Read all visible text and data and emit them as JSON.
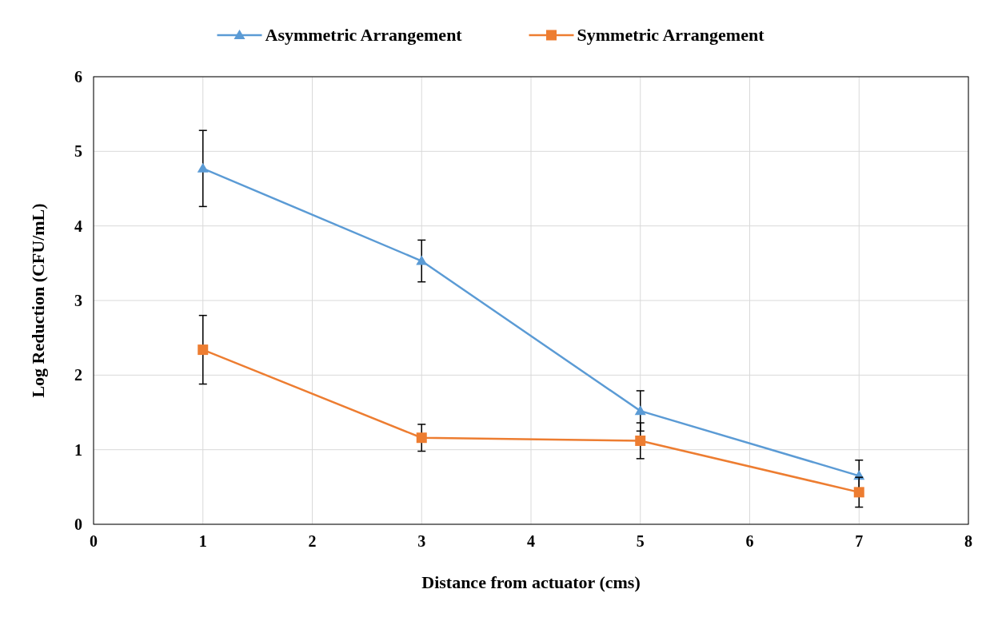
{
  "chart_data": {
    "type": "line",
    "xlabel": "Distance from actuator (cms)",
    "ylabel": "Log Reduction (CFU/mL)",
    "x": [
      1,
      3,
      5,
      7
    ],
    "series": [
      {
        "name": "Asymmetric Arrangement",
        "color": "#5b9bd5",
        "marker": "triangle",
        "values": [
          4.77,
          3.53,
          1.52,
          0.65
        ],
        "errors": [
          0.51,
          0.28,
          0.27,
          0.21
        ]
      },
      {
        "name": "Symmetric Arrangement",
        "color": "#ed7d31",
        "marker": "square",
        "values": [
          2.34,
          1.16,
          1.12,
          0.43
        ],
        "errors": [
          0.46,
          0.18,
          0.24,
          0.2
        ]
      }
    ],
    "xlim": [
      0,
      8
    ],
    "xticks": [
      0,
      1,
      2,
      3,
      4,
      5,
      6,
      7,
      8
    ],
    "ylim": [
      0,
      6
    ],
    "yticks": [
      0,
      1,
      2,
      3,
      4,
      5,
      6
    ],
    "grid": true,
    "legend": "top",
    "line_style": "solid"
  }
}
